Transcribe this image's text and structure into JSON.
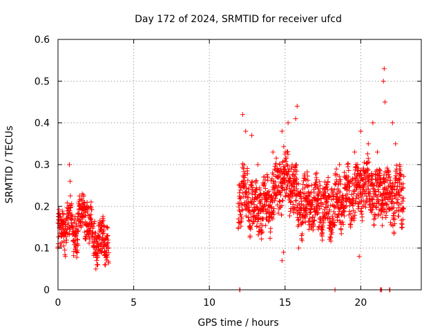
{
  "chart_data": {
    "type": "scatter",
    "title": "Day 172 of 2024, SRMTID for receiver ufcd",
    "xlabel": "GPS time / hours",
    "ylabel": "SRMTID / TECUs",
    "xlim": [
      0,
      24
    ],
    "ylim": [
      0,
      0.6
    ],
    "xticks": [
      0,
      5,
      10,
      15,
      20
    ],
    "xtick_labels": [
      "0",
      "5",
      "10",
      "15",
      "20"
    ],
    "yticks": [
      0,
      0.1,
      0.2,
      0.3,
      0.4,
      0.5,
      0.6
    ],
    "ytick_labels": [
      "0",
      "0.1",
      "0.2",
      "0.3",
      "0.4",
      "0.5",
      "0.6"
    ],
    "grid": true,
    "marker": "+",
    "series": [
      {
        "name": "SRMTID",
        "color": "#ff0000",
        "segments": [
          {
            "x_start": 0.0,
            "x_end": 3.35,
            "step": 0.02,
            "profile": [
              [
                0.0,
                0.13
              ],
              [
                0.4,
                0.14
              ],
              [
                0.7,
                0.18
              ],
              [
                1.0,
                0.13
              ],
              [
                1.4,
                0.16
              ],
              [
                1.8,
                0.19
              ],
              [
                2.2,
                0.14
              ],
              [
                2.6,
                0.11
              ],
              [
                3.0,
                0.12
              ],
              [
                3.35,
                0.12
              ]
            ],
            "spread": 0.04
          },
          {
            "x_start": 11.9,
            "x_end": 22.85,
            "step": 0.02,
            "profile": [
              [
                11.9,
                0.2
              ],
              [
                12.2,
                0.24
              ],
              [
                12.6,
                0.22
              ],
              [
                13.0,
                0.19
              ],
              [
                13.5,
                0.2
              ],
              [
                14.0,
                0.21
              ],
              [
                14.5,
                0.25
              ],
              [
                15.0,
                0.27
              ],
              [
                15.5,
                0.25
              ],
              [
                16.0,
                0.2
              ],
              [
                16.5,
                0.21
              ],
              [
                17.0,
                0.2
              ],
              [
                17.5,
                0.2
              ],
              [
                18.0,
                0.19
              ],
              [
                18.5,
                0.21
              ],
              [
                19.0,
                0.22
              ],
              [
                19.5,
                0.23
              ],
              [
                20.0,
                0.25
              ],
              [
                20.5,
                0.24
              ],
              [
                21.0,
                0.22
              ],
              [
                21.5,
                0.24
              ],
              [
                22.0,
                0.22
              ],
              [
                22.5,
                0.22
              ],
              [
                22.85,
                0.23
              ]
            ],
            "spread": 0.055
          }
        ],
        "peaks": [
          {
            "x": 0.75,
            "y": 0.3
          },
          {
            "x": 0.8,
            "y": 0.26
          },
          {
            "x": 1.6,
            "y": 0.23
          },
          {
            "x": 12.2,
            "y": 0.42
          },
          {
            "x": 12.4,
            "y": 0.38
          },
          {
            "x": 12.8,
            "y": 0.37
          },
          {
            "x": 13.2,
            "y": 0.3
          },
          {
            "x": 14.2,
            "y": 0.33
          },
          {
            "x": 14.8,
            "y": 0.38
          },
          {
            "x": 15.2,
            "y": 0.4
          },
          {
            "x": 15.8,
            "y": 0.44
          },
          {
            "x": 15.7,
            "y": 0.41
          },
          {
            "x": 17.1,
            "y": 0.28
          },
          {
            "x": 18.6,
            "y": 0.3
          },
          {
            "x": 19.6,
            "y": 0.33
          },
          {
            "x": 20.0,
            "y": 0.38
          },
          {
            "x": 20.5,
            "y": 0.35
          },
          {
            "x": 20.8,
            "y": 0.4
          },
          {
            "x": 21.1,
            "y": 0.33
          },
          {
            "x": 21.55,
            "y": 0.53
          },
          {
            "x": 21.5,
            "y": 0.5
          },
          {
            "x": 21.6,
            "y": 0.45
          },
          {
            "x": 22.1,
            "y": 0.4
          },
          {
            "x": 22.3,
            "y": 0.35
          }
        ],
        "lows": [
          {
            "x": 2.5,
            "y": 0.05
          },
          {
            "x": 14.8,
            "y": 0.07
          },
          {
            "x": 14.9,
            "y": 0.09
          },
          {
            "x": 19.9,
            "y": 0.08
          },
          {
            "x": 15.9,
            "y": 0.1
          }
        ],
        "zero_points": [
          12.0,
          12.02,
          18.3,
          21.3,
          21.35,
          21.38,
          21.9,
          21.93
        ]
      }
    ]
  }
}
